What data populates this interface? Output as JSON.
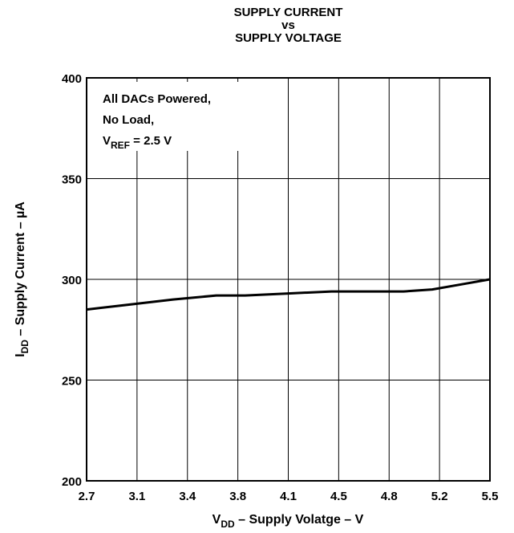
{
  "chart_data": {
    "type": "line",
    "title": [
      "SUPPLY CURRENT",
      "vs",
      "SUPPLY VOLTAGE"
    ],
    "xlabel": {
      "main": "V",
      "sub": "DD",
      "rest": " – Supply Volatge – V"
    },
    "ylabel": {
      "main": "I",
      "sub": "DD",
      "rest": " – Supply Current – µA"
    },
    "xlim": [
      2.7,
      5.5
    ],
    "ylim": [
      200,
      400
    ],
    "x_ticks": [
      "2.7",
      "3.1",
      "3.4",
      "3.8",
      "4.1",
      "4.5",
      "4.8",
      "5.2",
      "5.5"
    ],
    "y_ticks": [
      "200",
      "250",
      "300",
      "350",
      "400"
    ],
    "grid": true,
    "annotation": {
      "line1": "All DACs Powered,",
      "line2": "No Load,",
      "line3_main": "V",
      "line3_sub": "REF",
      "line3_rest": " = 2.5 V"
    },
    "series": [
      {
        "x": [
          2.7,
          3.0,
          3.3,
          3.6,
          3.8,
          4.1,
          4.4,
          4.6,
          4.9,
          5.1,
          5.3,
          5.5
        ],
        "y": [
          285,
          287.5,
          290,
          292,
          292,
          293,
          294,
          294,
          294,
          295,
          297.5,
          300
        ]
      }
    ]
  }
}
